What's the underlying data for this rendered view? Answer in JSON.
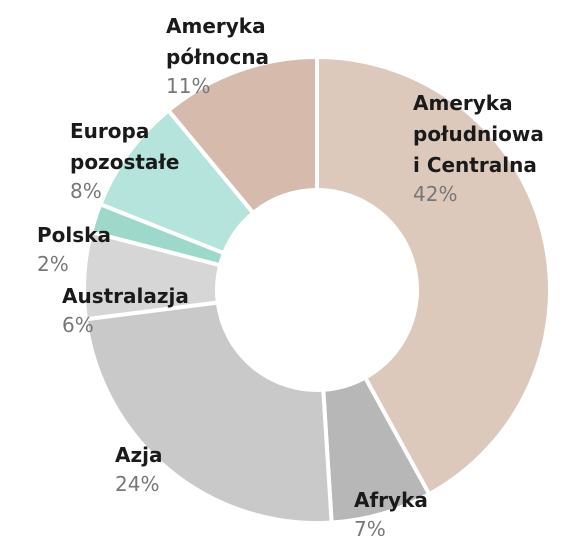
{
  "chart_data": {
    "type": "donut",
    "categories": [
      "Ameryka południowa i Centralna",
      "Afryka",
      "Azja",
      "Australazja",
      "Polska",
      "Europa pozostałe",
      "Ameryka północna"
    ],
    "values": [
      42,
      7,
      24,
      6,
      2,
      8,
      11
    ],
    "value_labels": [
      "42%",
      "7%",
      "24%",
      "6%",
      "2%",
      "8%",
      "11%"
    ],
    "colors": [
      "#dcc9bc",
      "#b7b7b7",
      "#c9c9c9",
      "#d6d6d6",
      "#9dd9ca",
      "#b4e4db",
      "#d6baac"
    ]
  }
}
